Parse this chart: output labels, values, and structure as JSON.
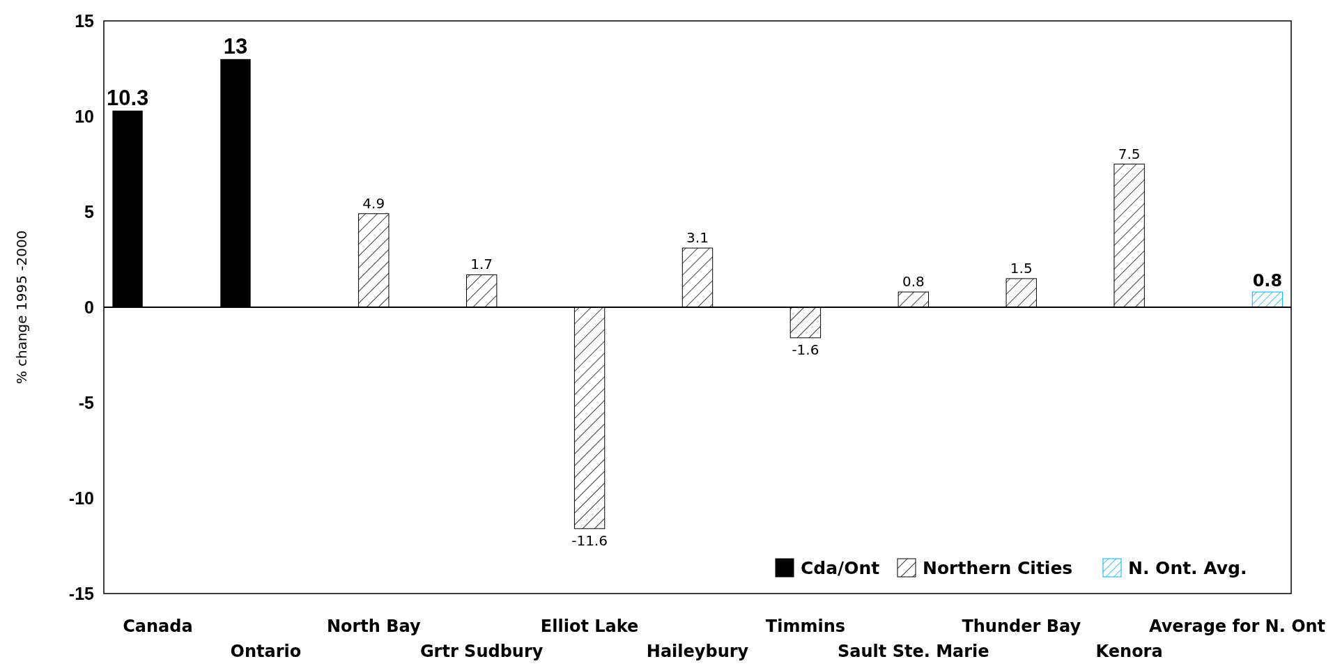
{
  "chart_data": {
    "type": "bar",
    "ylabel": "% change 1995 -2000",
    "categories": [
      "Canada",
      "Ontario",
      "North Bay",
      "Grtr Sudbury",
      "Elliot Lake",
      "Haileybury",
      "Timmins",
      "Sault Ste. Marie",
      "Thunder Bay",
      "Kenora",
      "Average for N. Ont"
    ],
    "series": [
      {
        "name": "Cda/Ont",
        "color": "#000000",
        "values": [
          10.3,
          13,
          null,
          null,
          null,
          null,
          null,
          null,
          null,
          null,
          null
        ]
      },
      {
        "name": "Northern Cities",
        "color": "#000000",
        "values": [
          null,
          null,
          4.9,
          1.7,
          -11.6,
          3.1,
          -1.6,
          0.8,
          1.5,
          7.5,
          null
        ]
      },
      {
        "name": "N. Ont. Avg.",
        "color": "#00b0f0",
        "values": [
          null,
          null,
          null,
          null,
          null,
          null,
          null,
          null,
          null,
          null,
          0.8
        ]
      }
    ],
    "ylim": [
      -15,
      15
    ],
    "yticks": [
      -15,
      -10,
      -5,
      0,
      5,
      10,
      15
    ],
    "data_labels": true,
    "legend": "bottom right"
  }
}
